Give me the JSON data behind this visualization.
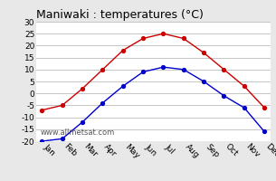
{
  "title": "Maniwaki : temperatures (°C)",
  "months": [
    "Jan",
    "Feb",
    "Mar",
    "Apr",
    "May",
    "Jun",
    "Jul",
    "Aug",
    "Sep",
    "Oct",
    "Nov",
    "Dec"
  ],
  "max_temps": [
    -7,
    -5,
    2,
    10,
    18,
    23,
    25,
    23,
    17,
    10,
    3,
    -6
  ],
  "min_temps": [
    -20,
    -19,
    -12,
    -4,
    3,
    9,
    11,
    10,
    5,
    -1,
    -6,
    -16
  ],
  "max_color": "#cc0000",
  "min_color": "#0000cc",
  "ylim": [
    -20,
    30
  ],
  "yticks": [
    -20,
    -15,
    -10,
    -5,
    0,
    5,
    10,
    15,
    20,
    25,
    30
  ],
  "bg_color": "#e8e8e8",
  "plot_bg": "#ffffff",
  "grid_color": "#bbbbbb",
  "watermark": "www.allmetsat.com",
  "title_fontsize": 9,
  "tick_fontsize": 6.5,
  "watermark_fontsize": 6
}
